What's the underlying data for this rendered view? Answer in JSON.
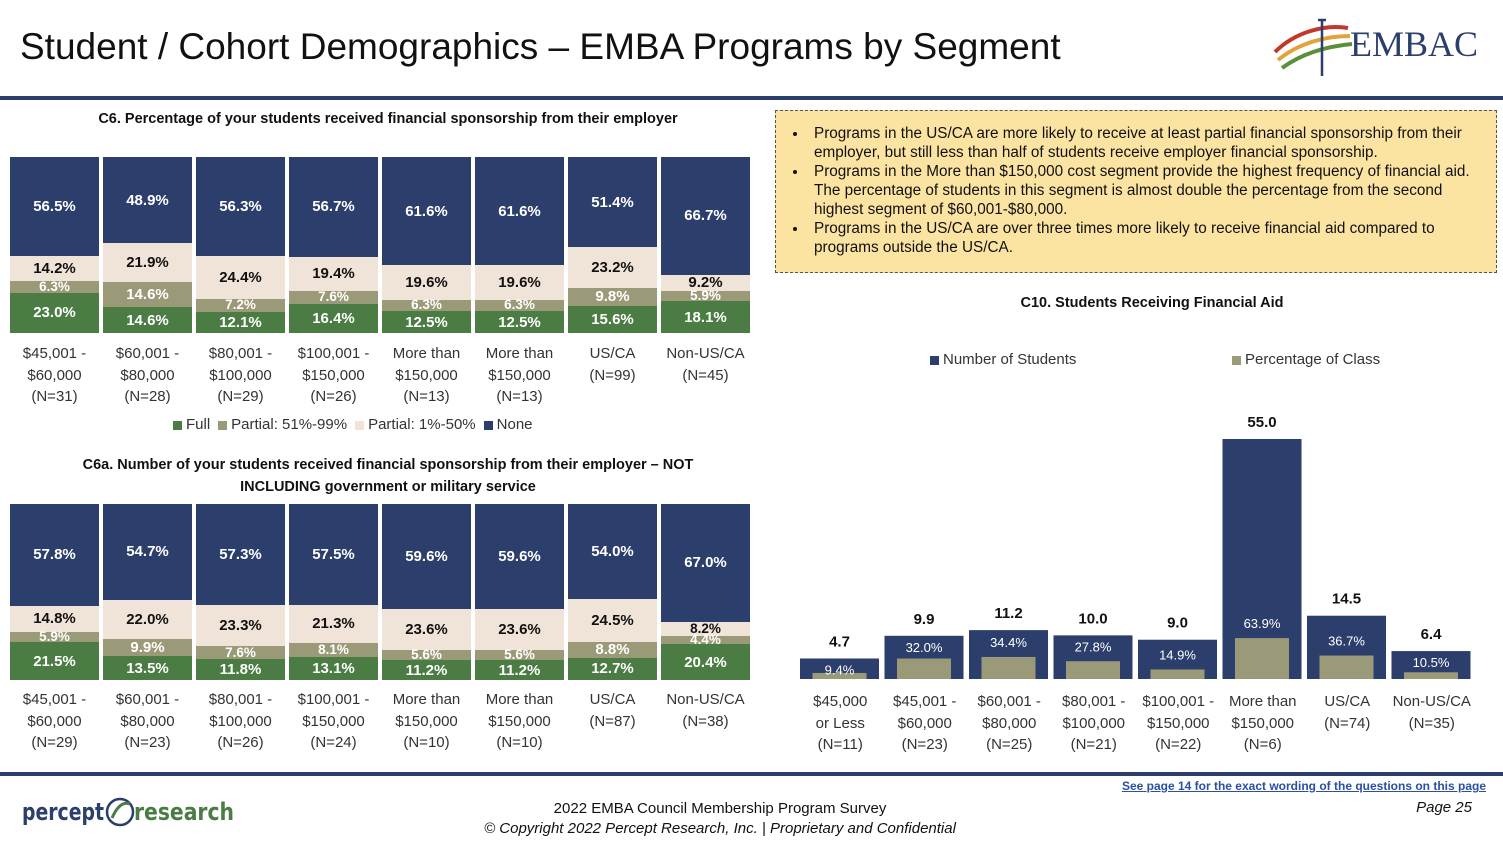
{
  "header": {
    "title": "Student / Cohort Demographics – EMBA Programs by Segment",
    "logo_text": "EMBAC"
  },
  "colors": {
    "none": "#2c3e6b",
    "partial_1_50": "#f0e3d8",
    "partial_51_99": "#9a9a78",
    "full": "#4a7c43"
  },
  "legend": {
    "full": "Full",
    "p51": "Partial: 51%-99%",
    "p1": "Partial: 1%-50%",
    "none": "None"
  },
  "notes": [
    "Programs in the US/CA are more likely to receive at least partial financial sponsorship from their employer, but still less than half of students receive employer financial sponsorship.",
    "Programs in the More than $150,000 cost segment provide the highest frequency of financial aid. The percentage of students in this segment is almost double the percentage from the second highest segment of $60,001-$80,000.",
    "Programs in the US/CA are over three times more likely to receive financial aid compared to programs outside the US/CA."
  ],
  "chart_data": [
    {
      "type": "bar",
      "stacked": true,
      "title": "C6. Percentage of your students received financial sponsorship from their employer",
      "categories": [
        "$45,001 - $60,000 (N=31)",
        "$60,001 - $80,000 (N=28)",
        "$80,001 - $100,000 (N=29)",
        "$100,001 - $150,000 (N=26)",
        "More than $150,000 (N=13)",
        "More than $150,000 (N=13)",
        "US/CA (N=99)",
        "Non-US/CA (N=45)"
      ],
      "category_lines": [
        [
          "$45,001 -",
          "$60,000",
          "(N=31)"
        ],
        [
          "$60,001 -",
          "$80,000",
          "(N=28)"
        ],
        [
          "$80,001 -",
          "$100,000",
          "(N=29)"
        ],
        [
          "$100,001 -",
          "$150,000",
          "(N=26)"
        ],
        [
          "More than",
          "$150,000",
          "(N=13)"
        ],
        [
          "More than",
          "$150,000",
          "(N=13)"
        ],
        [
          "US/CA",
          "(N=99)"
        ],
        [
          "Non-US/CA",
          "(N=45)"
        ]
      ],
      "series": [
        {
          "name": "Full",
          "values": [
            23.0,
            14.6,
            12.1,
            16.4,
            12.5,
            12.5,
            15.6,
            18.1
          ]
        },
        {
          "name": "Partial: 51%-99%",
          "values": [
            6.3,
            14.6,
            7.2,
            7.6,
            6.3,
            6.3,
            9.8,
            5.9
          ]
        },
        {
          "name": "Partial: 1%-50%",
          "values": [
            14.2,
            21.9,
            24.4,
            19.4,
            19.6,
            19.6,
            23.2,
            9.2
          ]
        },
        {
          "name": "None",
          "values": [
            56.5,
            48.9,
            56.3,
            56.7,
            61.6,
            61.6,
            51.4,
            66.7
          ]
        }
      ],
      "labels": [
        [
          "23.0%",
          "6.3%",
          "14.2%",
          "56.5%"
        ],
        [
          "14.6%",
          "14.6%",
          "21.9%",
          "48.9%"
        ],
        [
          "12.1%",
          "7.2%",
          "24.4%",
          "56.3%"
        ],
        [
          "16.4%",
          "7.6%",
          "19.4%",
          "56.7%"
        ],
        [
          "12.5%",
          "6.3%",
          "19.6%",
          "61.6%"
        ],
        [
          "12.5%",
          "6.3%",
          "19.6%",
          "61.6%"
        ],
        [
          "15.6%",
          "9.8%",
          "23.2%",
          "51.4%"
        ],
        [
          "18.1%",
          "5.9%",
          "9.2%",
          "66.7%"
        ]
      ],
      "ylim": [
        0,
        100
      ]
    },
    {
      "type": "bar",
      "stacked": true,
      "title": "C6a. Number of your students received financial sponsorship from their employer – NOT INCLUDING government or military service",
      "categories": [
        "$45,001 - $60,000 (N=29)",
        "$60,001 - $80,000 (N=23)",
        "$80,001 - $100,000 (N=26)",
        "$100,001 - $150,000 (N=24)",
        "More than $150,000 (N=10)",
        "More than $150,000 (N=10)",
        "US/CA (N=87)",
        "Non-US/CA (N=38)"
      ],
      "category_lines": [
        [
          "$45,001 -",
          "$60,000",
          "(N=29)"
        ],
        [
          "$60,001 -",
          "$80,000",
          "(N=23)"
        ],
        [
          "$80,001 -",
          "$100,000",
          "(N=26)"
        ],
        [
          "$100,001 -",
          "$150,000",
          "(N=24)"
        ],
        [
          "More than",
          "$150,000",
          "(N=10)"
        ],
        [
          "More than",
          "$150,000",
          "(N=10)"
        ],
        [
          "US/CA",
          "(N=87)"
        ],
        [
          "Non-US/CA",
          "(N=38)"
        ]
      ],
      "series": [
        {
          "name": "Full",
          "values": [
            21.5,
            13.5,
            11.8,
            13.1,
            11.2,
            11.2,
            12.7,
            20.4
          ]
        },
        {
          "name": "Partial: 51%-99%",
          "values": [
            5.9,
            9.9,
            7.6,
            8.1,
            5.6,
            5.6,
            8.8,
            4.4
          ]
        },
        {
          "name": "Partial: 1%-50%",
          "values": [
            14.8,
            22.0,
            23.3,
            21.3,
            23.6,
            23.6,
            24.5,
            8.2
          ]
        },
        {
          "name": "None",
          "values": [
            57.8,
            54.7,
            57.3,
            57.5,
            59.6,
            59.6,
            54.0,
            67.0
          ]
        }
      ],
      "labels": [
        [
          "21.5%",
          "5.9%",
          "14.8%",
          "57.8%"
        ],
        [
          "13.5%",
          "9.9%",
          "22.0%",
          "54.7%"
        ],
        [
          "11.8%",
          "7.6%",
          "23.3%",
          "57.3%"
        ],
        [
          "13.1%",
          "8.1%",
          "21.3%",
          "57.5%"
        ],
        [
          "11.2%",
          "5.6%",
          "23.6%",
          "59.6%"
        ],
        [
          "11.2%",
          "5.6%",
          "23.6%",
          "59.6%"
        ],
        [
          "12.7%",
          "8.8%",
          "24.5%",
          "54.0%"
        ],
        [
          "20.4%",
          "4.4%",
          "8.2%",
          "67.0%"
        ]
      ],
      "ylim": [
        0,
        100
      ]
    },
    {
      "type": "bar",
      "title": "C10. Students Receiving Financial Aid",
      "categories": [
        "$45,000 or Less (N=11)",
        "$45,001 - $60,000 (N=23)",
        "$60,001 - $80,000 (N=25)",
        "$80,001 - $100,000 (N=21)",
        "$100,001 - $150,000 (N=22)",
        "More than $150,000 (N=6)",
        "US/CA (N=74)",
        "Non-US/CA (N=35)"
      ],
      "category_lines": [
        [
          "$45,000",
          "or Less",
          "(N=11)"
        ],
        [
          "$45,001 -",
          "$60,000",
          "(N=23)"
        ],
        [
          "$60,001 -",
          "$80,000",
          "(N=25)"
        ],
        [
          "$80,001 -",
          "$100,000",
          "(N=21)"
        ],
        [
          "$100,001 -",
          "$150,000",
          "(N=22)"
        ],
        [
          "More than",
          "$150,000",
          "(N=6)"
        ],
        [
          "US/CA",
          "(N=74)"
        ],
        [
          "Non-US/CA",
          "(N=35)"
        ]
      ],
      "series": [
        {
          "name": "Number of Students",
          "values": [
            4.7,
            9.9,
            11.2,
            10.0,
            9.0,
            55.0,
            14.5,
            6.4
          ],
          "labels": [
            "4.7",
            "9.9",
            "11.2",
            "10.0",
            "9.0",
            "55.0",
            "14.5",
            "6.4"
          ]
        },
        {
          "name": "Percentage of Class",
          "values": [
            9.4,
            32.0,
            34.4,
            27.8,
            14.9,
            63.9,
            36.7,
            10.5
          ],
          "labels": [
            "9.4%",
            "32.0%",
            "34.4%",
            "27.8%",
            "14.9%",
            "63.9%",
            "36.7%",
            "10.5%"
          ]
        }
      ],
      "legend_position": "top"
    }
  ],
  "footer": {
    "link_text": "See page 14 for the exact wording of the questions on this page",
    "survey_line": "2022 EMBA Council Membership Program Survey",
    "copyright": "© Copyright 2022 Percept Research, Inc. | Proprietary and Confidential",
    "page": "Page 25",
    "brand_left": "percept",
    "brand_right": "research"
  }
}
